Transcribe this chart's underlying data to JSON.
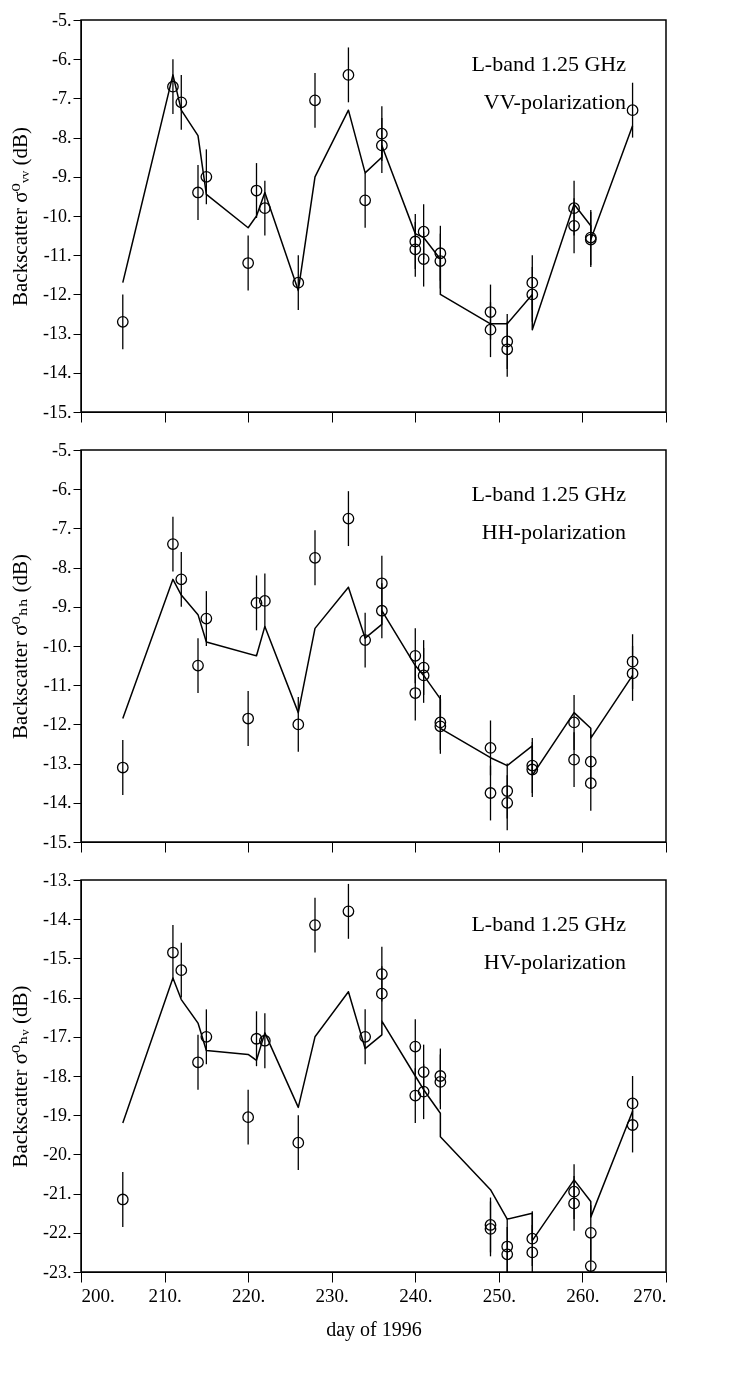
{
  "chart_data": [
    {
      "type": "scatter",
      "ylabel": "Backscatter σ⁰ᵥᵥ (dB)",
      "annotations": [
        "L-band  1.25 GHz",
        "VV-polarization"
      ],
      "tick_labels": "y",
      "xlim": [
        200,
        270
      ],
      "xticks": [
        200,
        210,
        220,
        230,
        240,
        250,
        260,
        270
      ],
      "ylim": [
        -15,
        -5
      ],
      "yticks": [
        {
          "value": -5,
          "label": "-5."
        },
        {
          "value": -6,
          "label": "-6."
        },
        {
          "value": -7,
          "label": "-7."
        },
        {
          "value": -8,
          "label": "-8."
        },
        {
          "value": -9,
          "label": "-9."
        },
        {
          "value": -10,
          "label": "-10."
        },
        {
          "value": -11,
          "label": "-11."
        },
        {
          "value": -12,
          "label": "-12."
        },
        {
          "value": -13,
          "label": "-13."
        },
        {
          "value": -14,
          "label": "-14."
        },
        {
          "value": -15,
          "label": "-15."
        }
      ],
      "series": [
        {
          "type": "scatter",
          "marker": "circle",
          "color": "#000000",
          "x": [
            205,
            211,
            212,
            214,
            215,
            220,
            221,
            222,
            226,
            228,
            232,
            234,
            236,
            236,
            240,
            240,
            241,
            241,
            243,
            243,
            249,
            249,
            251,
            251,
            254,
            254,
            259,
            259,
            261,
            261,
            266
          ],
          "values": [
            -12.7,
            -6.7,
            -7.1,
            -9.4,
            -9.0,
            -11.2,
            -9.35,
            -9.8,
            -11.7,
            -7.05,
            -6.4,
            -9.6,
            -7.9,
            -8.2,
            -10.65,
            -10.85,
            -10.4,
            -11.1,
            -10.95,
            -11.15,
            -12.45,
            -12.9,
            -13.2,
            -13.4,
            -11.7,
            -12.0,
            -9.8,
            -10.25,
            -10.55,
            -10.6,
            -7.3
          ],
          "errors": [
            0.7,
            0.7,
            0.7,
            0.7,
            0.7,
            0.7,
            0.7,
            0.7,
            0.7,
            0.7,
            0.7,
            0.7,
            0.7,
            0.7,
            0.7,
            0.7,
            0.7,
            0.7,
            0.7,
            0.7,
            0.7,
            0.7,
            0.7,
            0.7,
            0.7,
            0.7,
            0.7,
            0.7,
            0.7,
            0.7,
            0.7
          ]
        },
        {
          "type": "line",
          "color": "#000000",
          "x": [
            205,
            211,
            212,
            214,
            215,
            220,
            221,
            222,
            226,
            228,
            232,
            234,
            236,
            236,
            240,
            241,
            243,
            243,
            249,
            251,
            254,
            254,
            259,
            261,
            261,
            266
          ],
          "values": [
            -11.7,
            -6.4,
            -7.3,
            -7.95,
            -9.45,
            -10.3,
            -10.0,
            -9.4,
            -11.9,
            -9.0,
            -7.3,
            -8.9,
            -8.5,
            -8.2,
            -10.45,
            -10.55,
            -11.1,
            -12.0,
            -12.75,
            -12.75,
            -12.0,
            -12.9,
            -9.7,
            -10.25,
            -10.6,
            -7.7
          ]
        }
      ]
    },
    {
      "type": "scatter",
      "ylabel": "Backscatter σ⁰ₕₕ (dB)",
      "annotations": [
        "L-band  1.25 GHz",
        "HH-polarization"
      ],
      "tick_labels": "y",
      "xlim": [
        200,
        270
      ],
      "xticks": [
        200,
        210,
        220,
        230,
        240,
        250,
        260,
        270
      ],
      "ylim": [
        -15,
        -5
      ],
      "yticks": [
        {
          "value": -5,
          "label": "-5."
        },
        {
          "value": -6,
          "label": "-6."
        },
        {
          "value": -7,
          "label": "-7."
        },
        {
          "value": -8,
          "label": "-8."
        },
        {
          "value": -9,
          "label": "-9."
        },
        {
          "value": -10,
          "label": "-10."
        },
        {
          "value": -11,
          "label": "-11."
        },
        {
          "value": -12,
          "label": "-12."
        },
        {
          "value": -13,
          "label": "-13."
        },
        {
          "value": -14,
          "label": "-14."
        },
        {
          "value": -15,
          "label": "-15."
        }
      ],
      "series": [
        {
          "type": "scatter",
          "marker": "circle",
          "color": "#000000",
          "x": [
            205,
            211,
            212,
            214,
            215,
            220,
            221,
            222,
            226,
            228,
            232,
            234,
            236,
            236,
            240,
            240,
            241,
            241,
            243,
            243,
            249,
            249,
            251,
            251,
            254,
            254,
            259,
            259,
            261,
            261,
            266,
            266
          ],
          "values": [
            -13.1,
            -7.4,
            -8.3,
            -10.5,
            -9.3,
            -11.85,
            -8.9,
            -8.85,
            -12.0,
            -7.75,
            -6.75,
            -9.85,
            -8.4,
            -9.1,
            -10.25,
            -11.2,
            -10.55,
            -10.75,
            -11.95,
            -12.05,
            -12.6,
            -13.75,
            -13.7,
            -14.0,
            -13.05,
            -13.15,
            -11.95,
            -12.9,
            -12.95,
            -13.5,
            -10.4,
            -10.7
          ],
          "errors": [
            0.7,
            0.7,
            0.7,
            0.7,
            0.7,
            0.7,
            0.7,
            0.7,
            0.7,
            0.7,
            0.7,
            0.7,
            0.7,
            0.7,
            0.7,
            0.7,
            0.7,
            0.7,
            0.7,
            0.7,
            0.7,
            0.7,
            0.7,
            0.7,
            0.7,
            0.7,
            0.7,
            0.7,
            0.7,
            0.7,
            0.7,
            0.7
          ]
        },
        {
          "type": "line",
          "color": "#000000",
          "x": [
            205,
            211,
            212,
            214,
            215,
            221,
            222,
            226,
            228,
            232,
            234,
            236,
            236,
            240,
            241,
            243,
            243,
            249,
            251,
            254,
            254,
            259,
            261,
            261,
            266
          ],
          "values": [
            -11.85,
            -8.3,
            -8.7,
            -9.2,
            -9.9,
            -10.25,
            -9.5,
            -11.7,
            -9.55,
            -8.5,
            -9.8,
            -9.45,
            -9.1,
            -10.5,
            -10.75,
            -11.35,
            -12.1,
            -12.85,
            -13.05,
            -12.55,
            -13.3,
            -11.7,
            -12.1,
            -12.35,
            -10.75
          ]
        }
      ]
    },
    {
      "type": "scatter",
      "xlabel": "day of 1996",
      "ylabel": "Backscatter σ⁰ₕᵥ (dB)",
      "annotations": [
        "L-band  1.25 GHz",
        "HV-polarization"
      ],
      "xlim": [
        200,
        270
      ],
      "xticks": [
        {
          "value": 200,
          "label": "200."
        },
        {
          "value": 210,
          "label": "210."
        },
        {
          "value": 220,
          "label": "220."
        },
        {
          "value": 230,
          "label": "230."
        },
        {
          "value": 240,
          "label": "240."
        },
        {
          "value": 250,
          "label": "250."
        },
        {
          "value": 260,
          "label": "260."
        },
        {
          "value": 270,
          "label": "270."
        }
      ],
      "ylim": [
        -23,
        -13
      ],
      "yticks": [
        {
          "value": -13,
          "label": "-13."
        },
        {
          "value": -14,
          "label": "-14."
        },
        {
          "value": -15,
          "label": "-15."
        },
        {
          "value": -16,
          "label": "-16."
        },
        {
          "value": -17,
          "label": "-17."
        },
        {
          "value": -18,
          "label": "-18."
        },
        {
          "value": -19,
          "label": "-19."
        },
        {
          "value": -20,
          "label": "-20."
        },
        {
          "value": -21,
          "label": "-21."
        },
        {
          "value": -22,
          "label": "-22."
        },
        {
          "value": -23,
          "label": "-23."
        }
      ],
      "series": [
        {
          "type": "scatter",
          "marker": "circle",
          "color": "#000000",
          "x": [
            205,
            211,
            212,
            214,
            215,
            220,
            221,
            222,
            226,
            228,
            232,
            234,
            236,
            236,
            240,
            240,
            241,
            241,
            243,
            243,
            249,
            249,
            251,
            251,
            254,
            254,
            259,
            259,
            261,
            261,
            266,
            266
          ],
          "values": [
            -21.15,
            -14.85,
            -15.3,
            -17.65,
            -17.0,
            -19.05,
            -17.05,
            -17.1,
            -19.7,
            -14.15,
            -13.8,
            -17.0,
            -15.4,
            -15.9,
            -17.25,
            -18.5,
            -17.9,
            -18.4,
            -18.0,
            -18.15,
            -21.8,
            -21.9,
            -22.35,
            -22.55,
            -22.15,
            -22.5,
            -20.95,
            -21.25,
            -22.0,
            -22.85,
            -18.7,
            -19.25
          ],
          "errors": [
            0.7,
            0.7,
            0.7,
            0.7,
            0.7,
            0.7,
            0.7,
            0.7,
            0.7,
            0.7,
            0.7,
            0.7,
            0.7,
            0.7,
            0.7,
            0.7,
            0.7,
            0.7,
            0.7,
            0.7,
            0.7,
            0.7,
            [
              -23,
              -21.65
            ],
            [
              -23,
              -21.85
            ],
            0.7,
            [
              -23,
              -21.8
            ],
            0.7,
            0.7,
            0.7,
            [
              -23,
              -22.15
            ],
            0.7,
            0.7
          ]
        },
        {
          "type": "line",
          "color": "#000000",
          "x": [
            205,
            211,
            212,
            214,
            215,
            220,
            221,
            222,
            226,
            228,
            232,
            234,
            236,
            236,
            240,
            241,
            243,
            243,
            249,
            251,
            254,
            254,
            259,
            261,
            261,
            266
          ],
          "values": [
            -19.2,
            -15.5,
            -16.05,
            -16.65,
            -17.35,
            -17.45,
            -17.6,
            -16.9,
            -18.8,
            -17.0,
            -15.85,
            -17.3,
            -16.95,
            -16.6,
            -18.0,
            -18.35,
            -18.95,
            -19.55,
            -20.9,
            -21.65,
            -21.5,
            -22.2,
            -20.65,
            -21.2,
            -21.6,
            -18.9
          ]
        }
      ]
    }
  ]
}
